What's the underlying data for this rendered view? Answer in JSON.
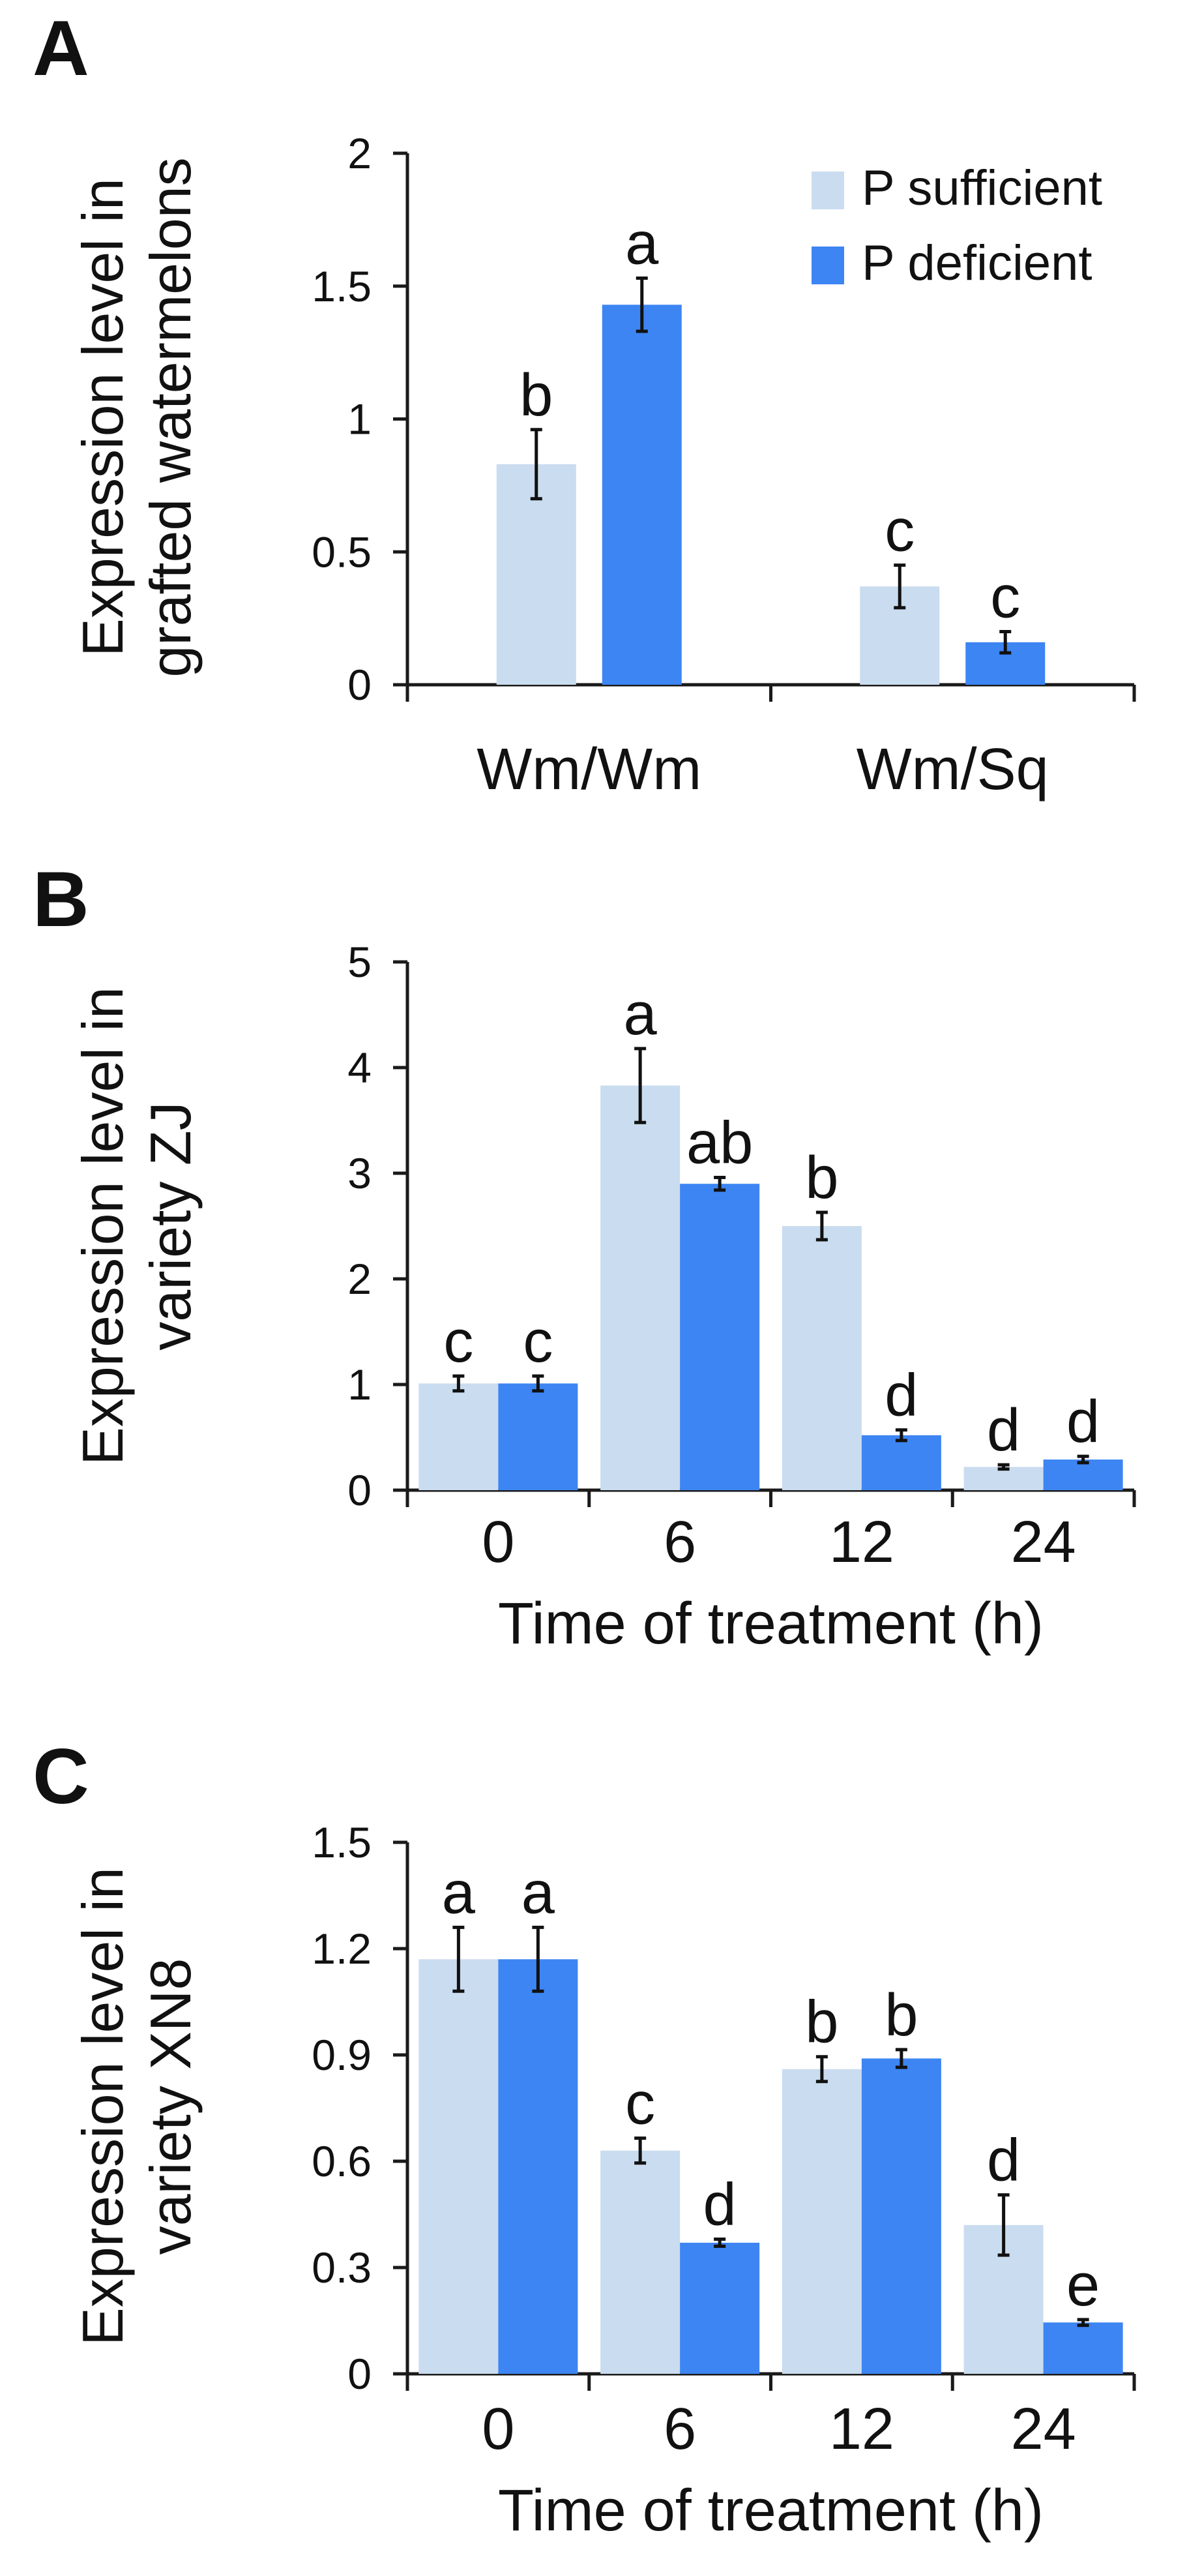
{
  "colors": {
    "p_sufficient": "#cadcef",
    "p_deficient": "#3d85f2",
    "axis": "#1a1a1a",
    "text": "#111111"
  },
  "legend": {
    "items": [
      "P sufficient",
      "P deficient"
    ]
  },
  "chart_data": [
    {
      "type": "bar",
      "panel": "A",
      "title": "",
      "xlabel": "",
      "ylabel": "Expression level in grafted watermelons",
      "ylabel_lines": [
        "Expression level in",
        "grafted watermelons"
      ],
      "ylim": [
        0,
        2
      ],
      "yticks": [
        0,
        0.5,
        1,
        1.5,
        2
      ],
      "ytick_labels": [
        "0",
        "0.5",
        "1",
        "1.5",
        "2"
      ],
      "categories": [
        "Wm/Wm",
        "Wm/Sq"
      ],
      "legend_position": "top-right",
      "series": [
        {
          "name": "P sufficient",
          "values": [
            0.83,
            0.37
          ],
          "errors": [
            0.13,
            0.08
          ],
          "letters": [
            "b",
            "c"
          ]
        },
        {
          "name": "P deficient",
          "values": [
            1.43,
            0.16
          ],
          "errors": [
            0.1,
            0.04
          ],
          "letters": [
            "a",
            "c"
          ]
        }
      ]
    },
    {
      "type": "bar",
      "panel": "B",
      "title": "",
      "xlabel": "Time of treatment (h)",
      "ylabel": "Expression level in variety ZJ",
      "ylabel_lines": [
        "Expression level in",
        "variety ZJ"
      ],
      "ylim": [
        0,
        5
      ],
      "yticks": [
        0,
        1,
        2,
        3,
        4,
        5
      ],
      "ytick_labels": [
        "0",
        "1",
        "2",
        "3",
        "4",
        "5"
      ],
      "categories": [
        "0",
        "6",
        "12",
        "24"
      ],
      "series": [
        {
          "name": "P sufficient",
          "values": [
            1.01,
            3.83,
            2.5,
            0.22
          ],
          "errors": [
            0.07,
            0.35,
            0.13,
            0.02
          ],
          "letters": [
            "c",
            "a",
            "b",
            "d"
          ]
        },
        {
          "name": "P deficient",
          "values": [
            1.01,
            2.9,
            0.52,
            0.29
          ],
          "errors": [
            0.07,
            0.06,
            0.05,
            0.03
          ],
          "letters": [
            "c",
            "ab",
            "d",
            "d"
          ]
        }
      ]
    },
    {
      "type": "bar",
      "panel": "C",
      "title": "",
      "xlabel": "Time of treatment (h)",
      "ylabel": "Expression level in variety XN8",
      "ylabel_lines": [
        "Expression level in",
        "variety XN8"
      ],
      "ylim": [
        0,
        1.5
      ],
      "yticks": [
        0,
        0.3,
        0.6,
        0.9,
        1.2,
        1.5
      ],
      "ytick_labels": [
        "0",
        "0.3",
        "0.6",
        "0.9",
        "1.2",
        "1.5"
      ],
      "categories": [
        "0",
        "6",
        "12",
        "24"
      ],
      "series": [
        {
          "name": "P sufficient",
          "values": [
            1.17,
            0.63,
            0.86,
            0.42
          ],
          "errors": [
            0.09,
            0.035,
            0.035,
            0.085
          ],
          "letters": [
            "a",
            "c",
            "b",
            "d"
          ]
        },
        {
          "name": "P deficient",
          "values": [
            1.17,
            0.37,
            0.89,
            0.145
          ],
          "errors": [
            0.09,
            0.01,
            0.025,
            0.008
          ],
          "letters": [
            "a",
            "d",
            "b",
            "e"
          ]
        }
      ]
    }
  ]
}
